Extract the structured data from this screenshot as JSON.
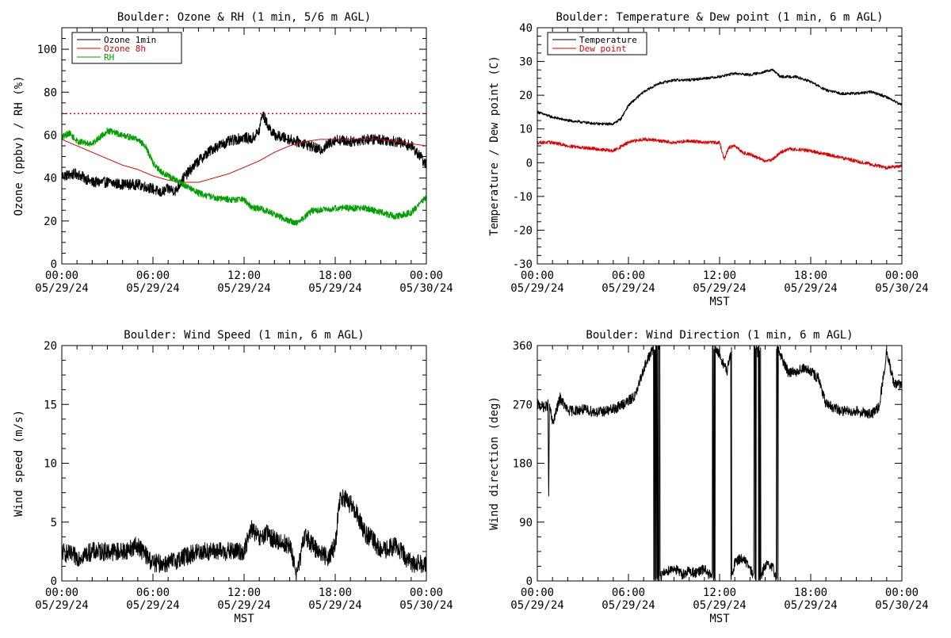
{
  "chart_data": [
    {
      "type": "line",
      "title": "Boulder: Ozone & RH (1 min, 5/6 m AGL)",
      "xlabel": "",
      "ylabel": "Ozone (ppbv) / RH (%)",
      "x_ticks": [
        {
          "time": "00:00",
          "date": "05/29/24"
        },
        {
          "time": "06:00",
          "date": "05/29/24"
        },
        {
          "time": "12:00",
          "date": "05/29/24"
        },
        {
          "time": "18:00",
          "date": "05/29/24"
        },
        {
          "time": "00:00",
          "date": "05/30/24"
        }
      ],
      "x_unit": "hours since 00:00 05/29/24",
      "xlim": [
        0,
        24
      ],
      "ylim": [
        0,
        110
      ],
      "y_ticks": [
        0,
        20,
        40,
        60,
        80,
        100
      ],
      "legend": "top-left",
      "reference_lines": [
        {
          "y": 70,
          "color": "#e00000",
          "style": "dotted"
        }
      ],
      "series": [
        {
          "name": "Ozone 1min",
          "color": "#000000",
          "noise": 2.5,
          "x": [
            0,
            1,
            2,
            3,
            4,
            5,
            6,
            6.5,
            7,
            7.5,
            8,
            9,
            10,
            11,
            12,
            12.5,
            13,
            13.2,
            13.6,
            14,
            15,
            16,
            17,
            18,
            19,
            20,
            21,
            22,
            23,
            23.5,
            24
          ],
          "y": [
            41,
            42,
            38,
            38,
            37,
            37,
            35,
            33,
            35,
            34,
            40,
            48,
            54,
            57,
            59,
            58,
            62,
            70,
            64,
            60,
            58,
            56,
            53,
            58,
            57,
            58,
            58,
            57,
            55,
            51,
            46
          ]
        },
        {
          "name": "Ozone 8h",
          "color": "#e00000",
          "noise": 0,
          "x": [
            0,
            1,
            2,
            3,
            4,
            5,
            6,
            7,
            8,
            9,
            10,
            11,
            12,
            13,
            14,
            15,
            16,
            17,
            18,
            19,
            20,
            21,
            22,
            23,
            24
          ],
          "y": [
            58,
            55,
            52,
            49,
            46,
            44,
            41,
            39,
            38,
            38,
            40,
            42,
            45,
            48,
            52,
            55,
            57,
            58,
            58,
            58,
            58,
            58,
            57,
            56,
            55
          ]
        },
        {
          "name": "RH",
          "color": "#00a000",
          "noise": 1.5,
          "x": [
            0,
            0.5,
            1,
            2,
            2.5,
            3,
            3.5,
            4,
            5,
            5.5,
            6,
            6.5,
            7,
            8,
            9,
            10,
            11,
            12,
            12.5,
            13,
            14,
            15,
            15.5,
            16,
            16.5,
            17,
            18,
            19,
            20,
            21,
            22,
            23,
            24
          ],
          "y": [
            59,
            61,
            57,
            56,
            59,
            62,
            61,
            60,
            58,
            55,
            47,
            43,
            41,
            37,
            33,
            31,
            30,
            30,
            26,
            26,
            23,
            20,
            19,
            22,
            25,
            25,
            26,
            26,
            26,
            24,
            22,
            24,
            31
          ]
        }
      ]
    },
    {
      "type": "line",
      "title": "Boulder: Temperature & Dew point (1 min, 6 m AGL)",
      "xlabel": "MST",
      "ylabel": "Temperature / Dew point (C)",
      "x_ticks": [
        {
          "time": "00:00",
          "date": "05/29/24"
        },
        {
          "time": "06:00",
          "date": "05/29/24"
        },
        {
          "time": "12:00",
          "date": "05/29/24"
        },
        {
          "time": "18:00",
          "date": "05/29/24"
        },
        {
          "time": "00:00",
          "date": "05/30/24"
        }
      ],
      "x_unit": "hours since 00:00 05/29/24",
      "xlim": [
        0,
        24
      ],
      "ylim": [
        -30,
        40
      ],
      "y_ticks": [
        -30,
        -20,
        -10,
        0,
        10,
        20,
        30,
        40
      ],
      "legend": "top-left",
      "series": [
        {
          "name": "Temperature",
          "color": "#000000",
          "noise": 0.4,
          "x": [
            0,
            1,
            2,
            3,
            4,
            5,
            5.5,
            6,
            7,
            8,
            9,
            10,
            11,
            12,
            13,
            14,
            15,
            15.5,
            16,
            17,
            18,
            19,
            20,
            21,
            22,
            23,
            24
          ],
          "y": [
            15,
            13.5,
            12.5,
            12,
            11.5,
            11.5,
            13,
            17,
            21,
            23.5,
            24.5,
            24.5,
            25,
            25.5,
            26.5,
            26,
            27,
            27.5,
            25.5,
            25.5,
            24,
            21.5,
            20.5,
            20.5,
            21,
            19.5,
            17
          ]
        },
        {
          "name": "Dew point",
          "color": "#e00000",
          "noise": 0.5,
          "x": [
            0,
            1,
            2,
            3,
            4,
            5,
            6,
            7,
            8,
            9,
            10,
            11,
            12,
            12.3,
            12.6,
            13,
            13.5,
            14,
            15,
            15.5,
            16,
            16.5,
            17,
            18,
            19,
            20,
            21,
            22,
            23,
            24
          ],
          "y": [
            6,
            6,
            5,
            4.5,
            4,
            3.5,
            6,
            7,
            6.5,
            6,
            6.5,
            6,
            6,
            1,
            4.5,
            5,
            3,
            2.5,
            0.5,
            1,
            3,
            4,
            4,
            3.5,
            2.5,
            1.5,
            0.5,
            -0.5,
            -1.5,
            -1
          ]
        }
      ]
    },
    {
      "type": "line",
      "title": "Boulder: Wind Speed (1 min, 6 m AGL)",
      "xlabel": "MST",
      "ylabel": "Wind speed (m/s)",
      "x_ticks": [
        {
          "time": "00:00",
          "date": "05/29/24"
        },
        {
          "time": "06:00",
          "date": "05/29/24"
        },
        {
          "time": "12:00",
          "date": "05/29/24"
        },
        {
          "time": "18:00",
          "date": "05/29/24"
        },
        {
          "time": "00:00",
          "date": "05/30/24"
        }
      ],
      "x_unit": "hours since 00:00 05/29/24",
      "xlim": [
        0,
        24
      ],
      "ylim": [
        0,
        20
      ],
      "y_ticks": [
        0,
        5,
        10,
        15,
        20
      ],
      "series": [
        {
          "name": "",
          "color": "#000000",
          "noise": 0.8,
          "floor": 0,
          "x": [
            0,
            1,
            2,
            3,
            4,
            5,
            6,
            7,
            8,
            9,
            10,
            11,
            12,
            12.5,
            13,
            13.5,
            14,
            15,
            15.5,
            16,
            16.5,
            17,
            17.5,
            18,
            18.3,
            18.6,
            19,
            19.5,
            20,
            20.5,
            21,
            22,
            23,
            23.5,
            24
          ],
          "y": [
            2.5,
            2,
            2.5,
            2.5,
            2.5,
            3,
            1.5,
            1.5,
            2,
            2.5,
            2.5,
            2.5,
            2.5,
            4.5,
            3.5,
            4,
            3.5,
            3,
            0.5,
            4,
            3,
            2.5,
            2,
            3,
            7,
            7,
            6.5,
            5.5,
            4,
            3.5,
            2.5,
            3,
            1.5,
            1.5,
            1.5
          ]
        }
      ]
    },
    {
      "type": "line",
      "title": "Boulder: Wind Direction (1 min, 6 m AGL)",
      "xlabel": "MST",
      "ylabel": "Wind direction (deg)",
      "x_ticks": [
        {
          "time": "00:00",
          "date": "05/29/24"
        },
        {
          "time": "06:00",
          "date": "05/29/24"
        },
        {
          "time": "12:00",
          "date": "05/29/24"
        },
        {
          "time": "18:00",
          "date": "05/29/24"
        },
        {
          "time": "00:00",
          "date": "05/30/24"
        }
      ],
      "x_unit": "hours since 00:00 05/29/24",
      "xlim": [
        0,
        24
      ],
      "ylim": [
        0,
        360
      ],
      "y_ticks": [
        0,
        90,
        180,
        270,
        360
      ],
      "series": [
        {
          "name": "",
          "color": "#000000",
          "noise": 8,
          "wrap": 360,
          "x": [
            0,
            0.5,
            0.7,
            0.75,
            0.8,
            1,
            1.5,
            2,
            3,
            4,
            5,
            6,
            6.5,
            7,
            7.5,
            8,
            8.5,
            9,
            9.5,
            10,
            10.5,
            11,
            11.5,
            12,
            12.5,
            13,
            13.5,
            14,
            14.5,
            15,
            15.5,
            16,
            16.5,
            17,
            17.5,
            18,
            18.5,
            19,
            20,
            21,
            22,
            22.5,
            23,
            23.5,
            24
          ],
          "y": [
            270,
            265,
            270,
            125,
            270,
            240,
            280,
            260,
            262,
            258,
            262,
            275,
            285,
            325,
            350,
            365,
            375,
            380,
            370,
            375,
            372,
            378,
            365,
            345,
            320,
            390,
            395,
            380,
            350,
            385,
            380,
            345,
            320,
            320,
            325,
            320,
            310,
            270,
            260,
            260,
            255,
            265,
            350,
            300,
            300
          ]
        }
      ]
    }
  ]
}
